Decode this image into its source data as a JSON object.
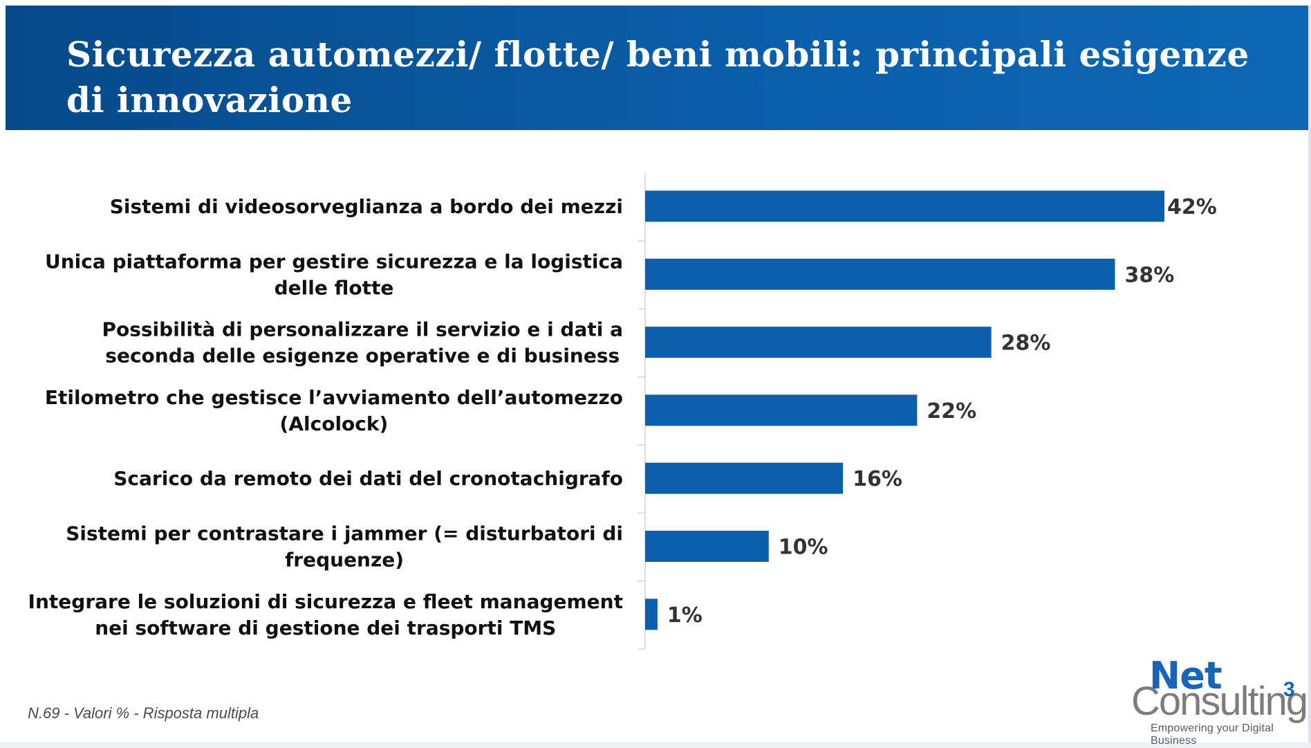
{
  "header": {
    "title": "Sicurezza automezzi/ flotte/ beni mobili: principali esigenze di innovazione"
  },
  "chart_data": {
    "type": "bar",
    "orientation": "horizontal",
    "title": "",
    "xlabel": "",
    "ylabel": "",
    "xlim": [
      0,
      50
    ],
    "grid": false,
    "bar_color": "#0b5fac",
    "categories": [
      "Sistemi di videosorveglianza a bordo dei mezzi",
      "Unica piattaforma per gestire sicurezza e la logistica delle flotte",
      "Possibilità di personalizzare il servizio e i dati a seconda delle esigenze operative e di business",
      "Etilometro che gestisce l’avviamento dell’automezzo (Alcolock)",
      "Scarico da remoto dei dati del cronotachigrafo",
      "Sistemi per contrastare i jammer (= disturbatori di frequenze)",
      "Integrare le soluzioni di sicurezza e fleet management nei software di gestione dei trasporti TMS"
    ],
    "category_lines": [
      [
        "Sistemi di videosorveglianza a bordo dei mezzi"
      ],
      [
        "Unica piattaforma per gestire sicurezza e la logistica",
        "delle flotte"
      ],
      [
        "Possibilità di personalizzare il servizio e i dati a",
        "seconda delle esigenze operative e di business"
      ],
      [
        "Etilometro che gestisce l’avviamento dell’automezzo",
        "(Alcolock)"
      ],
      [
        "Scarico da remoto dei dati del cronotachigrafo"
      ],
      [
        "Sistemi per contrastare i jammer (= disturbatori di",
        "frequenze)"
      ],
      [
        "Integrare le soluzioni di sicurezza e fleet management",
        "nei software di gestione dei trasporti TMS"
      ]
    ],
    "values": [
      42,
      38,
      28,
      22,
      16,
      10,
      1
    ],
    "value_labels": [
      "42%",
      "38%",
      "28%",
      "22%",
      "16%",
      "10%",
      "1%"
    ]
  },
  "footnote": "N.69 - Valori % - Risposta multipla",
  "logo": {
    "net": "Net",
    "consulting": "Consulting",
    "superscript": "3",
    "tagline": "Empowering your Digital Business"
  }
}
